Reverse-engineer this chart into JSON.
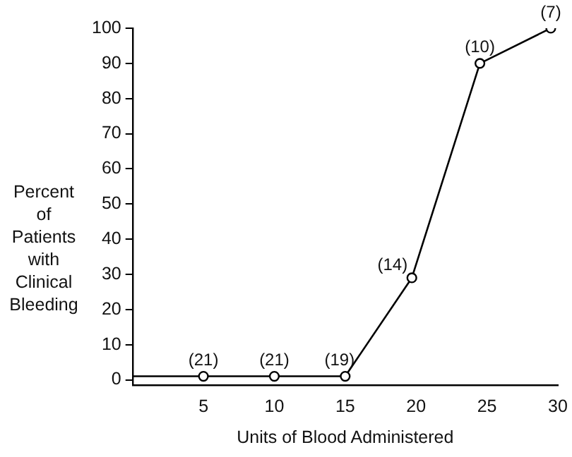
{
  "chart_data": {
    "type": "line",
    "xlabel": "Units of Blood Administered",
    "ylabel": "Percent\nof\nPatients\nwith\nClinical\nBleeding",
    "xlim": [
      0,
      30
    ],
    "xticks": [
      5,
      10,
      15,
      20,
      25,
      30
    ],
    "ylim": [
      -1.5,
      100
    ],
    "yticks": [
      0,
      10,
      20,
      30,
      40,
      50,
      60,
      70,
      80,
      90,
      100
    ],
    "grid": false,
    "legend": false,
    "line_style": "solid",
    "series": [
      {
        "color": "#000000",
        "x": [
          0,
          4.65
        ],
        "values": [
          1,
          1
        ],
        "marker": "none"
      },
      {
        "color": "#000000",
        "x": [
          5,
          10,
          15,
          19.7,
          24.5,
          29.5
        ],
        "values": [
          1,
          1,
          1,
          29,
          90,
          100
        ],
        "marker": "circle"
      }
    ],
    "annotations": [
      {
        "text": "(21)",
        "x": 5,
        "y": 1
      },
      {
        "text": "(21)",
        "x": 10,
        "y": 1
      },
      {
        "text": "(19)",
        "x": 15,
        "y": 1
      },
      {
        "text": "(14)",
        "x": 19.7,
        "y": 29
      },
      {
        "text": "(10)",
        "x": 24.5,
        "y": 90
      },
      {
        "text": "(7)",
        "x": 29.5,
        "y": 100
      }
    ]
  }
}
